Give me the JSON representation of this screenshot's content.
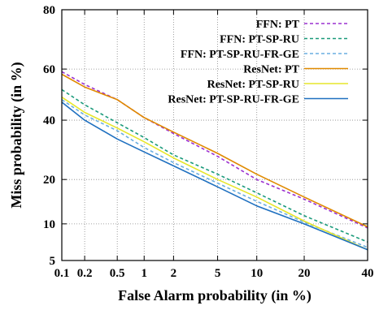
{
  "chart_data": {
    "type": "line",
    "title": "",
    "xlabel": "False Alarm probability (in %)",
    "ylabel": "Miss probability (in %)",
    "x_scale": "probit",
    "y_scale": "probit",
    "xlim": [
      0.1,
      40
    ],
    "ylim": [
      5,
      80
    ],
    "x_ticks": [
      0.1,
      0.2,
      0.5,
      1,
      2,
      5,
      10,
      20,
      40
    ],
    "x_tick_labels": [
      "0.1",
      "0.2",
      "0.5",
      "1",
      "2",
      "5",
      "10",
      "20",
      "40"
    ],
    "y_ticks": [
      5,
      10,
      20,
      40,
      60,
      80
    ],
    "y_tick_labels": [
      "5",
      "10",
      "20",
      "40",
      "60",
      "80"
    ],
    "grid": true,
    "legend_position": "top-right",
    "series": [
      {
        "name": "FFN: PT",
        "color": "#9b30d0",
        "dash": "dashed",
        "x": [
          0.1,
          0.2,
          0.5,
          1,
          2,
          5,
          10,
          20,
          40
        ],
        "y": [
          59,
          54,
          48,
          41,
          35,
          27,
          20,
          15,
          9.3
        ]
      },
      {
        "name": "FFN: PT-SP-RU",
        "color": "#1a9a7a",
        "dash": "dashed",
        "x": [
          0.1,
          0.2,
          0.5,
          1,
          2,
          5,
          10,
          20,
          40
        ],
        "y": [
          52,
          46,
          39,
          33.5,
          27.5,
          21.5,
          16.5,
          11.5,
          7.2
        ]
      },
      {
        "name": "FFN: PT-SP-RU-FR-GE",
        "color": "#6aaee0",
        "dash": "dashed",
        "x": [
          0.1,
          0.2,
          0.5,
          1,
          2,
          5,
          10,
          20,
          40
        ],
        "y": [
          48,
          42,
          36,
          30,
          25,
          19,
          14.5,
          10.3,
          6.5
        ]
      },
      {
        "name": "ResNet: PT",
        "color": "#e08a00",
        "dash": "solid",
        "x": [
          0.1,
          0.2,
          0.5,
          1,
          2,
          5,
          10,
          20,
          40
        ],
        "y": [
          58,
          53,
          48,
          41,
          35.5,
          28,
          21.5,
          15.5,
          9.5
        ]
      },
      {
        "name": "ResNet: PT-SP-RU",
        "color": "#e6e62a",
        "dash": "solid",
        "x": [
          0.1,
          0.2,
          0.5,
          1,
          2,
          5,
          10,
          20,
          40
        ],
        "y": [
          49,
          43,
          37,
          32,
          26.5,
          20,
          15.5,
          10.5,
          6.2
        ]
      },
      {
        "name": "ResNet: PT-SP-RU-FR-GE",
        "color": "#1f70c0",
        "dash": "solid",
        "x": [
          0.1,
          0.2,
          0.5,
          1,
          2,
          5,
          10,
          20,
          40
        ],
        "y": [
          47,
          40,
          33,
          28.5,
          24,
          18,
          13.5,
          10,
          6.2
        ]
      }
    ]
  }
}
